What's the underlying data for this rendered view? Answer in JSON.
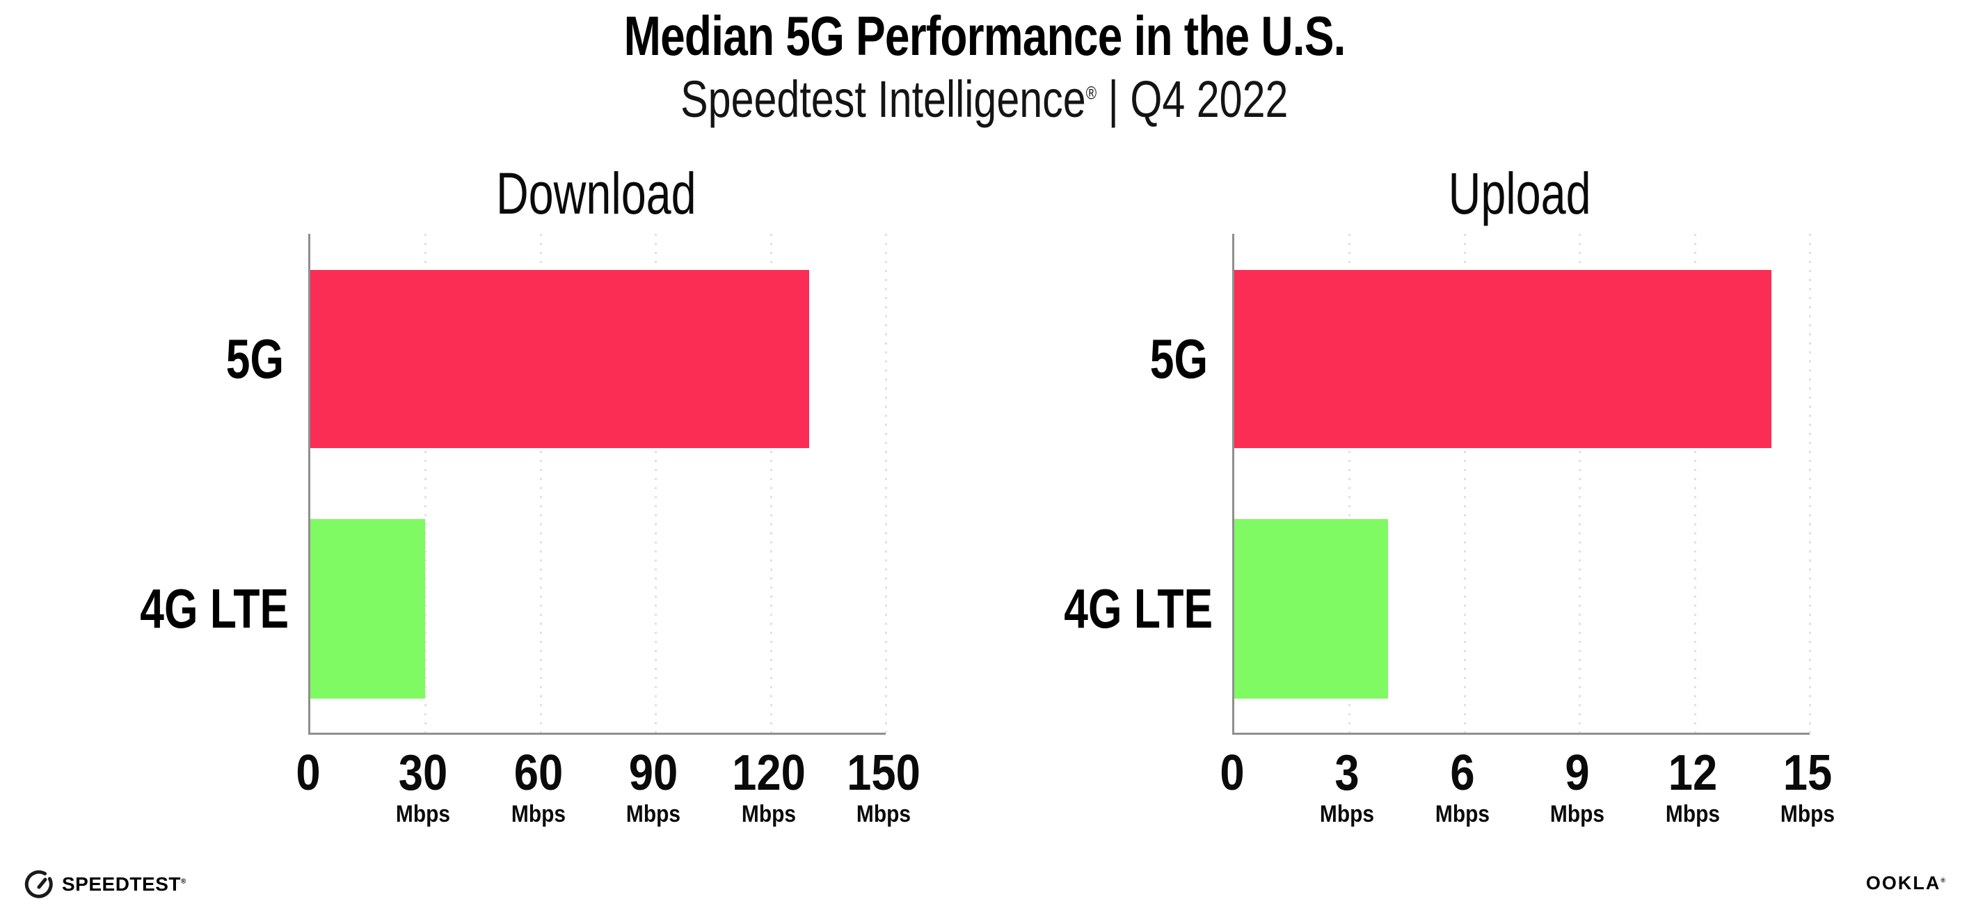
{
  "header": {
    "title": "Median 5G Performance in the U.S.",
    "subtitle_brand": "Speedtest Intelligence",
    "subtitle_reg": "®",
    "subtitle_rest": " | Q4 2022"
  },
  "chart_data": [
    {
      "type": "bar",
      "orientation": "horizontal",
      "title": "Download",
      "categories": [
        "5G",
        "4G LTE"
      ],
      "values": [
        130,
        30
      ],
      "unit": "Mbps",
      "xlim": [
        0,
        150
      ],
      "xticks": [
        0,
        30,
        60,
        90,
        120,
        150
      ],
      "tick_labels": [
        {
          "value": "0",
          "unit": ""
        },
        {
          "value": "30",
          "unit": "Mbps"
        },
        {
          "value": "60",
          "unit": "Mbps"
        },
        {
          "value": "90",
          "unit": "Mbps"
        },
        {
          "value": "120",
          "unit": "Mbps"
        },
        {
          "value": "150",
          "unit": "Mbps"
        }
      ],
      "bar_colors": [
        "#FB2D55",
        "#7FFA63"
      ],
      "grid": "dotted-vertical-at-ticks",
      "legend": "none"
    },
    {
      "type": "bar",
      "orientation": "horizontal",
      "title": "Upload",
      "categories": [
        "5G",
        "4G LTE"
      ],
      "values": [
        14,
        4
      ],
      "unit": "Mbps",
      "xlim": [
        0,
        15
      ],
      "xticks": [
        0,
        3,
        6,
        9,
        12,
        15
      ],
      "tick_labels": [
        {
          "value": "0",
          "unit": ""
        },
        {
          "value": "3",
          "unit": "Mbps"
        },
        {
          "value": "6",
          "unit": "Mbps"
        },
        {
          "value": "9",
          "unit": "Mbps"
        },
        {
          "value": "12",
          "unit": "Mbps"
        },
        {
          "value": "15",
          "unit": "Mbps"
        }
      ],
      "bar_colors": [
        "#FB2D55",
        "#7FFA63"
      ],
      "grid": "dotted-vertical-at-ticks",
      "legend": "none"
    }
  ],
  "footer": {
    "speedtest_label": "SPEEDTEST",
    "speedtest_reg": "®",
    "ookla_label": "OOKLA",
    "ookla_reg": "®"
  },
  "colors": {
    "bar_5g": "#FB2D55",
    "bar_4g_lte": "#7FFA63",
    "axis": "#8F8F8F",
    "gridline": "#DFDFEA",
    "text": "#000000",
    "background": "#FFFFFF"
  }
}
